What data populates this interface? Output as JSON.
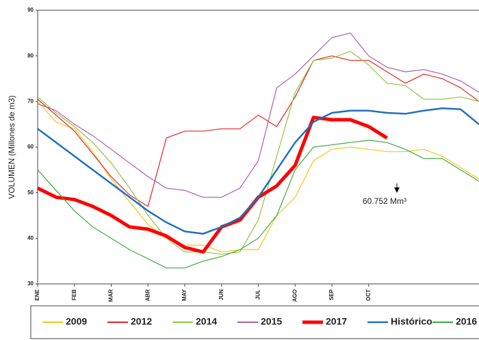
{
  "chart_data": {
    "type": "line",
    "y_label": "VOLUMEN (Millones de m3)",
    "annotation": "60.752 Mm³",
    "x": [
      0,
      0.5,
      1,
      1.5,
      2,
      2.5,
      3,
      3.5,
      4,
      4.5,
      5,
      5.5,
      6,
      6.5,
      7,
      7.5,
      8,
      8.5,
      9,
      9.5,
      10,
      10.5,
      11,
      11.5,
      12
    ],
    "xlim": [
      0,
      12
    ],
    "xticks": [
      {
        "value": 0,
        "label": "ENE"
      },
      {
        "value": 1,
        "label": "FEB"
      },
      {
        "value": 2,
        "label": "MAR"
      },
      {
        "value": 3,
        "label": "ABR"
      },
      {
        "value": 4,
        "label": "MAY"
      },
      {
        "value": 5,
        "label": "JUN"
      },
      {
        "value": 6,
        "label": "JUL"
      },
      {
        "value": 7,
        "label": "AGO"
      },
      {
        "value": 8,
        "label": "SEP"
      },
      {
        "value": 9,
        "label": "OCT"
      }
    ],
    "ylim": [
      30,
      90
    ],
    "yticks": [
      30,
      40,
      50,
      60,
      70,
      80,
      90
    ],
    "series": [
      {
        "name": "2009",
        "color": "#f5c518",
        "line_width": 1.2,
        "values": [
          70,
          65.5,
          64,
          59,
          53,
          48,
          43,
          40,
          38.5,
          38.5,
          37,
          37.5,
          37.5,
          45,
          49,
          57,
          59.5,
          60,
          59.5,
          59,
          59,
          59.5,
          58,
          55.5,
          53
        ]
      },
      {
        "name": "2012",
        "color": "#e8231f",
        "line_width": 1.2,
        "values": [
          70.5,
          67,
          63.5,
          58.5,
          53.5,
          49.5,
          47,
          62,
          63.5,
          63.5,
          64,
          64,
          67,
          64.5,
          71,
          79,
          80,
          79,
          79,
          76.5,
          74,
          76,
          75,
          73,
          70
        ]
      },
      {
        "name": "2014",
        "color": "#8dc63f",
        "line_width": 1.2,
        "values": [
          71,
          67.5,
          64.5,
          61,
          56.5,
          51,
          45,
          40,
          37,
          37,
          36.5,
          37,
          44,
          58,
          72,
          79,
          79.5,
          81,
          78,
          74,
          73.5,
          70.5,
          70.5,
          71,
          70
        ]
      },
      {
        "name": "2015",
        "color": "#b05ca8",
        "line_width": 1.2,
        "values": [
          69.5,
          68,
          65,
          62.5,
          59.5,
          56.5,
          53.5,
          51,
          50.5,
          49,
          49,
          51,
          57,
          73,
          76,
          80,
          84,
          85,
          80,
          77.5,
          76.5,
          77,
          76,
          74.5,
          72
        ]
      },
      {
        "name": "2017",
        "color": "#ff0000",
        "line_width": 5,
        "values": [
          51,
          49,
          48.5,
          47,
          45,
          42.5,
          42,
          40.5,
          38,
          37,
          42.5,
          44,
          49,
          51.5,
          56,
          66.5,
          66,
          66,
          64.5,
          62,
          null,
          null,
          null,
          null,
          null
        ]
      },
      {
        "name": "Histórico",
        "color": "#1f6fbd",
        "line_width": 2.5,
        "values": [
          64,
          61,
          58,
          55,
          52,
          49,
          46,
          43.5,
          41.5,
          41,
          42.5,
          44.5,
          49,
          55,
          61,
          65.5,
          67.5,
          68,
          68,
          67.5,
          67.3,
          68,
          68.5,
          68.3,
          65
        ]
      },
      {
        "name": "2016",
        "color": "#3daa3d",
        "line_width": 1.2,
        "values": [
          55,
          50.5,
          46,
          42.5,
          40,
          37.5,
          35.5,
          33.5,
          33.5,
          35,
          36,
          37.5,
          40,
          45,
          55,
          60,
          60.5,
          61,
          61.5,
          61,
          59.5,
          57.5,
          57.5,
          55,
          52.5
        ]
      }
    ]
  }
}
